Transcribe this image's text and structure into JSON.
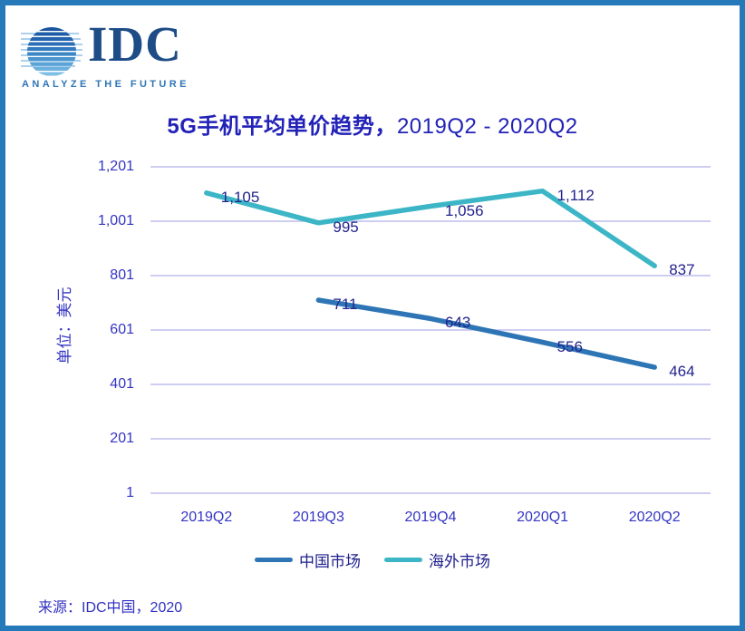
{
  "logo": {
    "text": "IDC",
    "tagline": "ANALYZE THE FUTURE"
  },
  "title": {
    "main": "5G手机平均单价趋势，",
    "range": "2019Q2 - 2020Q2"
  },
  "chart_data": {
    "type": "line",
    "categories": [
      "2019Q2",
      "2019Q3",
      "2019Q4",
      "2020Q1",
      "2020Q2"
    ],
    "series": [
      {
        "name": "中国市场",
        "color": "#2e75b6",
        "values": [
          null,
          711,
          643,
          556,
          464
        ],
        "labels": [
          "",
          "711",
          "643",
          "556",
          "464"
        ]
      },
      {
        "name": "海外市场",
        "color": "#3cb6c6",
        "values": [
          1105,
          995,
          1056,
          1112,
          837
        ],
        "labels": [
          "1,105",
          "995",
          "1,056",
          "1,112",
          "837"
        ]
      }
    ],
    "ylabel": "单位：美元",
    "xlabel": "",
    "yticks": [
      1,
      201,
      401,
      601,
      801,
      1001,
      1201
    ],
    "ytick_labels": [
      "1",
      "201",
      "401",
      "601",
      "801",
      "1,001",
      "1,201"
    ],
    "ylim": [
      1,
      1201
    ],
    "grid": true,
    "legend_position": "bottom"
  },
  "source": "来源：IDC中国，2020",
  "colors": {
    "border": "#2579b9",
    "title_text": "#2222b8",
    "axis_text": "#3434c4",
    "data_label_text": "#23238f",
    "legend_text": "#20208f",
    "source_text": "#3232c2",
    "gridline": "#bdbdee",
    "china_line": "#2e75b6",
    "overseas_line": "#3cb6c6",
    "logo_navy": "#1e4c86",
    "logo_tagline_blue": "#2e75b6"
  }
}
